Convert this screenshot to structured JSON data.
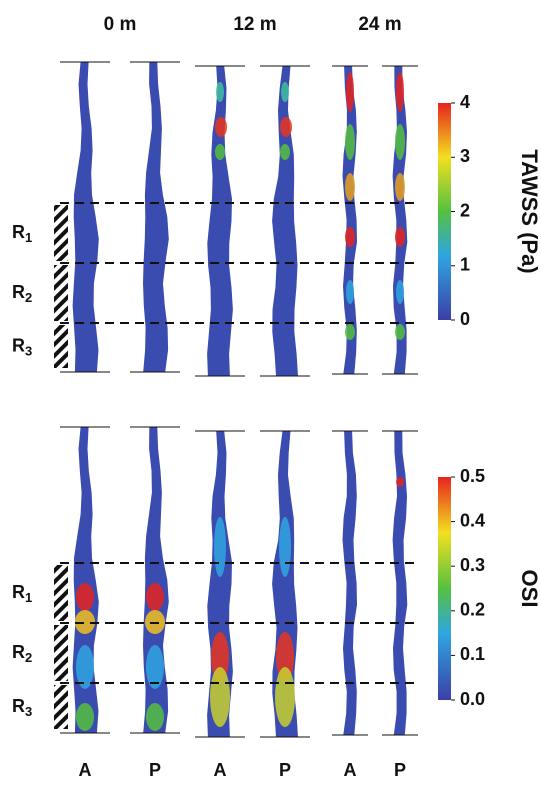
{
  "columns": [
    "0 m",
    "12 m",
    "24 m"
  ],
  "views": [
    "A",
    "P",
    "A",
    "P",
    "A",
    "P"
  ],
  "regions": [
    {
      "label": "R",
      "sub": "1"
    },
    {
      "label": "R",
      "sub": "2"
    },
    {
      "label": "R",
      "sub": "3"
    }
  ],
  "panels": [
    {
      "title": "TAWSS (Pa)",
      "range": [
        0,
        4
      ],
      "ticks": [
        0,
        1,
        2,
        3,
        4
      ]
    },
    {
      "title": "OSI",
      "range": [
        0,
        0.5
      ],
      "ticks": [
        {
          "value": 0,
          "label": "0.0"
        },
        {
          "value": 0.1,
          "label": "0.1"
        },
        {
          "value": 0.2,
          "label": "0.2"
        },
        {
          "value": 0.3,
          "label": "0.3"
        },
        {
          "value": 0.4,
          "label": "0.4"
        },
        {
          "value": 0.5,
          "label": "0.5"
        }
      ]
    }
  ]
}
